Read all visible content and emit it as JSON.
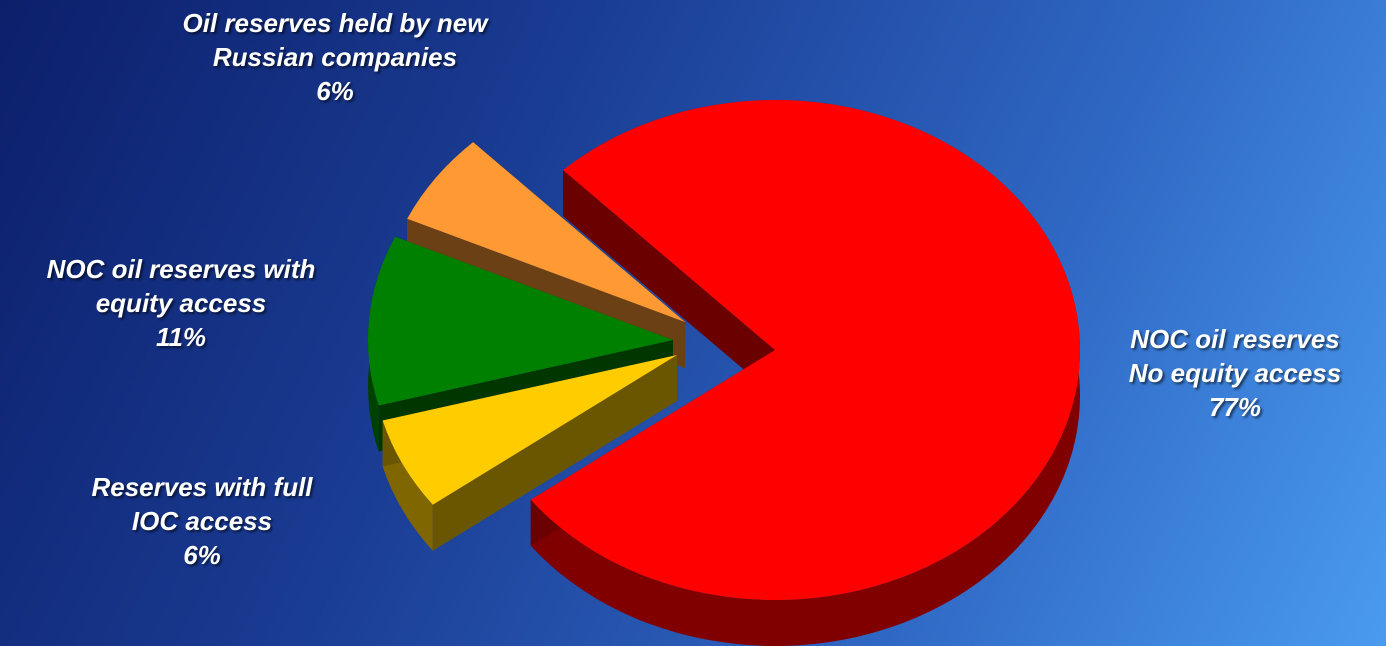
{
  "chart_data": {
    "type": "pie",
    "style": "3d-exploded",
    "title": "",
    "slices": [
      {
        "label_lines": [
          "NOC oil reserves",
          "No equity access"
        ],
        "value": 77,
        "value_label": "77%",
        "color": "#ff0000"
      },
      {
        "label_lines": [
          "Reserves with full",
          "IOC access"
        ],
        "value": 6,
        "value_label": "6%",
        "color": "#ffcc00"
      },
      {
        "label_lines": [
          "NOC oil reserves with",
          "equity access"
        ],
        "value": 11,
        "value_label": "11%",
        "color": "#008000"
      },
      {
        "label_lines": [
          "Oil reserves held by new",
          "Russian companies"
        ],
        "value": 6,
        "value_label": "6%",
        "color": "#ff9933"
      }
    ],
    "legend": "none"
  }
}
